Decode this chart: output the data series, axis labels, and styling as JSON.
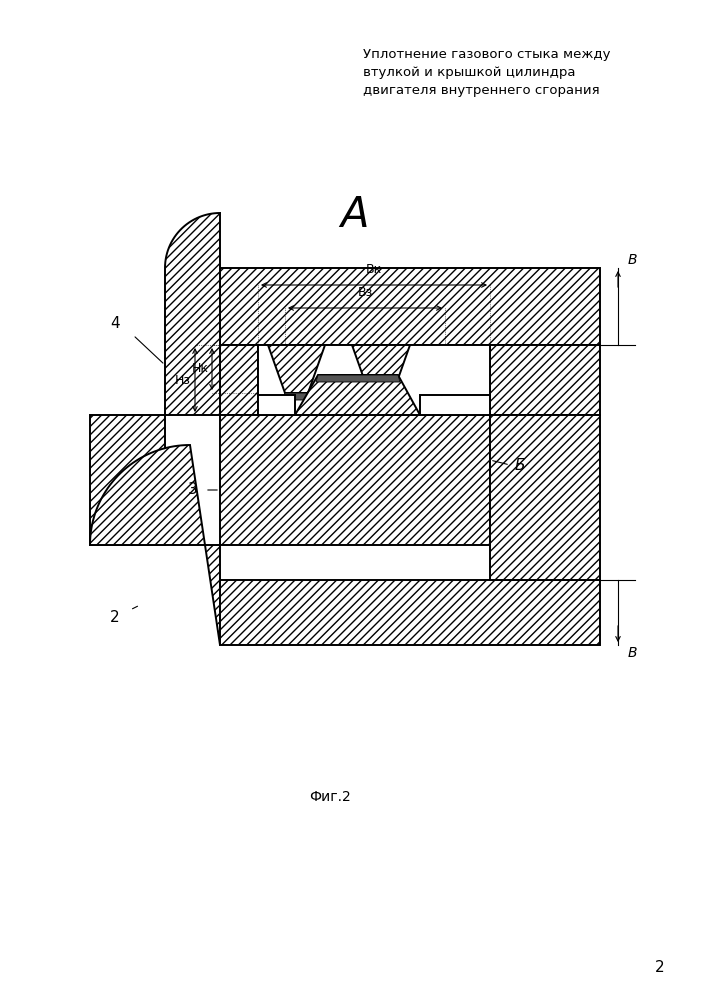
{
  "title": "Уплотнение газового стыка между\nвтулкой и крышкой цилиндра\nдвигателя внутреннего сгорания",
  "fig_label": "Фиг.2",
  "view_label_A": "А",
  "view_label_B": "В",
  "bg_color": "#ffffff",
  "line_color": "#000000",
  "dark_fill": "#555555",
  "page_number": "2",
  "label_4": "4",
  "label_3": "3",
  "label_2": "2",
  "label_B": "Б",
  "dim_Bk": "Вк",
  "dim_Bz": "Вз",
  "dim_Hz": "Нз",
  "dim_Hk": "Нк"
}
